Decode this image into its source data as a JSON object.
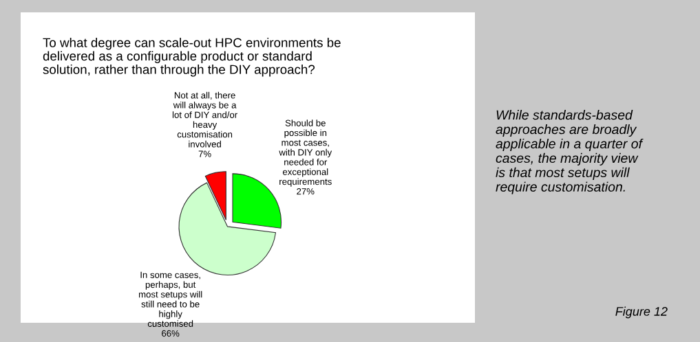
{
  "chart_data": {
    "type": "pie",
    "title": "To what degree can scale-out HPC environments be\ndelivered as a configurable product or standard\nsolution, rather than through the DIY approach?",
    "categories": [
      "Should be\npossible in\nmost cases,\nwith DIY only\nneeded for\nexceptional\nrequirements\n27%",
      "In some cases,\nperhaps, but\nmost setups will\nstill need to be\nhighly\ncustomised\n66%",
      "Not at all, there\nwill always be a\nlot of DIY and/or\nheavy\ncustomisation\ninvolved\n7%"
    ],
    "values": [
      27,
      66,
      7
    ],
    "colors": [
      "#00ff00",
      "#ccffcc",
      "#ff0000"
    ],
    "annotations": [
      "While standards-based\napproaches are broadly\napplicable in a quarter of\ncases, the majority view\nis that most setups will\nrequire customisation.",
      "Figure 12"
    ]
  }
}
